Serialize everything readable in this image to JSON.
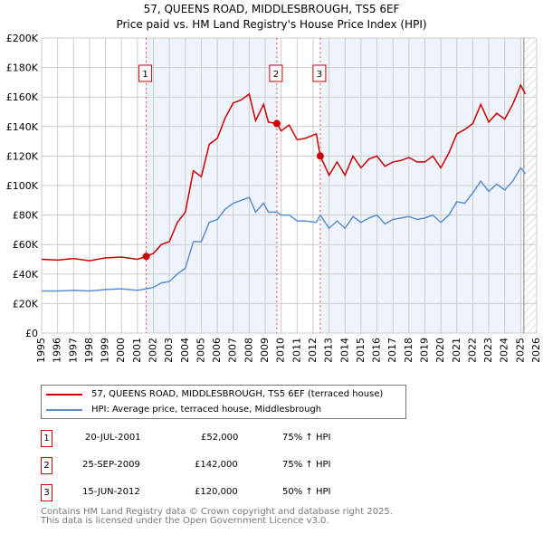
{
  "chart_data": {
    "type": "line",
    "title": "57, QUEENS ROAD, MIDDLESBROUGH, TS5 6EF",
    "subtitle": "Price paid vs. HM Land Registry's House Price Index (HPI)",
    "xlim": [
      1995,
      2026
    ],
    "ylim": [
      0,
      200000
    ],
    "yticks": [
      {
        "v": 0,
        "label": "£0"
      },
      {
        "v": 20000,
        "label": "£20K"
      },
      {
        "v": 40000,
        "label": "£40K"
      },
      {
        "v": 60000,
        "label": "£60K"
      },
      {
        "v": 80000,
        "label": "£80K"
      },
      {
        "v": 100000,
        "label": "£100K"
      },
      {
        "v": 120000,
        "label": "£120K"
      },
      {
        "v": 140000,
        "label": "£140K"
      },
      {
        "v": 160000,
        "label": "£160K"
      },
      {
        "v": 180000,
        "label": "£180K"
      },
      {
        "v": 200000,
        "label": "£200K"
      }
    ],
    "xticks": [
      "1995",
      "1996",
      "1997",
      "1998",
      "1999",
      "2000",
      "2001",
      "2002",
      "2003",
      "2004",
      "2005",
      "2006",
      "2007",
      "2008",
      "2009",
      "2010",
      "2011",
      "2012",
      "2013",
      "2014",
      "2015",
      "2016",
      "2017",
      "2018",
      "2019",
      "2020",
      "2021",
      "2022",
      "2023",
      "2024",
      "2025",
      "2026"
    ],
    "grid": true,
    "series": [
      {
        "name": "57, QUEENS ROAD, MIDDLESBROUGH, TS5 6EF (terraced house)",
        "color": "#cc0000",
        "x": [
          1995,
          1996,
          1997,
          1998,
          1999,
          2000,
          2001,
          2001.55,
          2002,
          2002.5,
          2003,
          2003.5,
          2004,
          2004.5,
          2005,
          2005.5,
          2006,
          2006.5,
          2007,
          2007.5,
          2008,
          2008.4,
          2008.9,
          2009.2,
          2009.73,
          2010,
          2010.5,
          2011,
          2011.5,
          2012.2,
          2012.45,
          2013,
          2013.5,
          2014,
          2014.5,
          2015,
          2015.5,
          2016,
          2016.5,
          2017,
          2017.5,
          2018,
          2018.5,
          2019,
          2019.5,
          2020,
          2020.5,
          2021,
          2021.5,
          2022,
          2022.5,
          2023,
          2023.5,
          2024,
          2024.5,
          2025,
          2025.3
        ],
        "y": [
          50000,
          49500,
          50500,
          49000,
          51000,
          51500,
          50000,
          52000,
          54000,
          60000,
          62000,
          75000,
          82000,
          110000,
          106000,
          128000,
          132000,
          146000,
          156000,
          158000,
          162000,
          144000,
          155000,
          143000,
          142000,
          137000,
          141000,
          131000,
          132000,
          135000,
          120000,
          107000,
          116000,
          107000,
          120000,
          112000,
          118000,
          120000,
          113000,
          116000,
          117000,
          119000,
          116000,
          116000,
          120000,
          112000,
          122000,
          135000,
          138000,
          142000,
          155000,
          143000,
          149000,
          145000,
          155000,
          168000,
          162000
        ]
      },
      {
        "name": "HPI: Average price, terraced house, Middlesbrough",
        "color": "#5b8fd4",
        "x": [
          1995,
          1996,
          1997,
          1998,
          1999,
          2000,
          2001,
          2001.55,
          2002,
          2002.5,
          2003,
          2003.5,
          2004,
          2004.5,
          2005,
          2005.5,
          2006,
          2006.5,
          2007,
          2007.5,
          2008,
          2008.4,
          2008.9,
          2009.2,
          2009.73,
          2010,
          2010.5,
          2011,
          2011.5,
          2012.2,
          2012.45,
          2013,
          2013.5,
          2014,
          2014.5,
          2015,
          2015.5,
          2016,
          2016.5,
          2017,
          2017.5,
          2018,
          2018.5,
          2019,
          2019.5,
          2020,
          2020.5,
          2021,
          2021.5,
          2022,
          2022.5,
          2023,
          2023.5,
          2024,
          2024.5,
          2025,
          2025.3
        ],
        "y": [
          28500,
          28500,
          29000,
          28500,
          29500,
          30000,
          29000,
          30000,
          31000,
          34000,
          35000,
          40000,
          44000,
          62000,
          62000,
          75000,
          77000,
          84000,
          88000,
          90000,
          92000,
          82000,
          88000,
          82000,
          82000,
          80000,
          80000,
          76000,
          76000,
          75000,
          80000,
          71000,
          76000,
          71000,
          79000,
          75000,
          78000,
          80000,
          74000,
          77000,
          78000,
          79000,
          77000,
          78000,
          80000,
          75000,
          80000,
          89000,
          88000,
          95000,
          103000,
          96000,
          101000,
          97000,
          103000,
          112000,
          108000
        ]
      }
    ],
    "sales": [
      {
        "n": "1",
        "date": "20-JUL-2001",
        "x": 2001.55,
        "price": "£52,000",
        "value": 52000,
        "hpi": "75% ↑ HPI"
      },
      {
        "n": "2",
        "date": "25-SEP-2009",
        "x": 2009.73,
        "price": "£142,000",
        "value": 142000,
        "hpi": "75% ↑ HPI"
      },
      {
        "n": "3",
        "date": "15-JUN-2012",
        "x": 2012.45,
        "price": "£120,000",
        "value": 120000,
        "hpi": "50% ↑ HPI"
      }
    ],
    "forecast_start": 2025.2
  },
  "footer": {
    "line1": "Contains HM Land Registry data © Crown copyright and database right 2025.",
    "line2": "This data is licensed under the Open Government Licence v3.0."
  }
}
